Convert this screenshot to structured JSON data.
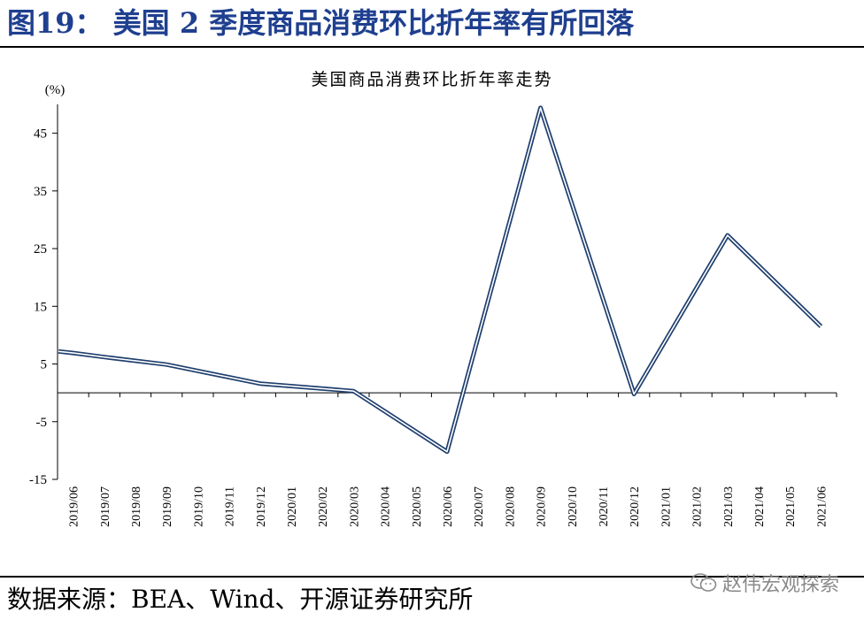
{
  "figure": {
    "title": "图19：  美国 2 季度商品消费环比折年率有所回落",
    "source": "数据来源：BEA、Wind、开源证券研究所",
    "watermark": "赵伟宏观探索",
    "watermark_icon": "wechat-icon"
  },
  "chart_data": {
    "type": "line",
    "title": "美国商品消费环比折年率走势",
    "unit_label": "(%)",
    "categories": [
      "2019/06",
      "2019/07",
      "2019/08",
      "2019/09",
      "2019/10",
      "2019/11",
      "2019/12",
      "2020/01",
      "2020/02",
      "2020/03",
      "2020/04",
      "2020/05",
      "2020/06",
      "2020/07",
      "2020/08",
      "2020/09",
      "2020/10",
      "2020/11",
      "2020/12",
      "2021/01",
      "2021/02",
      "2021/03",
      "2021/04",
      "2021/05",
      "2021/06"
    ],
    "series": [
      {
        "x": [
          "2019/06",
          "2019/07",
          "2019/09",
          "2019/12",
          "2020/03",
          "2020/06",
          "2020/09",
          "2020/12",
          "2021/03",
          "2021/06"
        ],
        "values": [
          6.9,
          6.2,
          4.9,
          1.6,
          0.3,
          -10.2,
          49.4,
          -0.2,
          27.3,
          11.5
        ],
        "color": "#1f3f6e"
      }
    ],
    "yticks": [
      -15,
      -5,
      5,
      15,
      25,
      35,
      45
    ],
    "ylim": [
      -15,
      50
    ],
    "grid": false,
    "legend": "none"
  }
}
